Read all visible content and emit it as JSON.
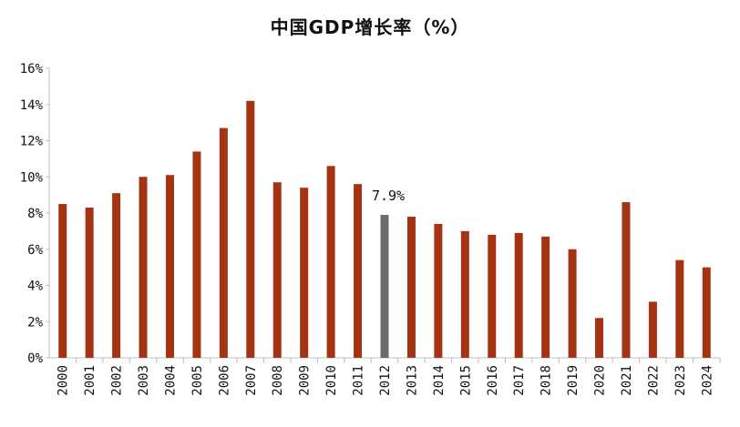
{
  "chart_data": {
    "type": "bar",
    "title": "中国GDP增长率（%）",
    "xlabel": "",
    "ylabel": "",
    "ylim": [
      0,
      16
    ],
    "y_ticks": [
      "0%",
      "2%",
      "4%",
      "6%",
      "8%",
      "10%",
      "12%",
      "14%",
      "16%"
    ],
    "grid": false,
    "legend": "none",
    "categories": [
      "2000",
      "2001",
      "2002",
      "2003",
      "2004",
      "2005",
      "2006",
      "2007",
      "2008",
      "2009",
      "2010",
      "2011",
      "2012",
      "2013",
      "2014",
      "2015",
      "2016",
      "2017",
      "2018",
      "2019",
      "2020",
      "2021",
      "2022",
      "2023",
      "2024"
    ],
    "values": [
      8.5,
      8.3,
      9.1,
      10.0,
      10.1,
      11.4,
      12.7,
      14.2,
      9.7,
      9.4,
      10.6,
      9.6,
      7.9,
      7.8,
      7.4,
      7.0,
      6.8,
      6.9,
      6.7,
      6.0,
      2.2,
      8.6,
      3.1,
      5.4,
      5.0
    ],
    "highlight": {
      "category": "2012",
      "label": "7.9%"
    },
    "colors": {
      "bar": "#A63214",
      "highlight": "#6B6B6B",
      "axis": "#BFBFBF"
    }
  }
}
